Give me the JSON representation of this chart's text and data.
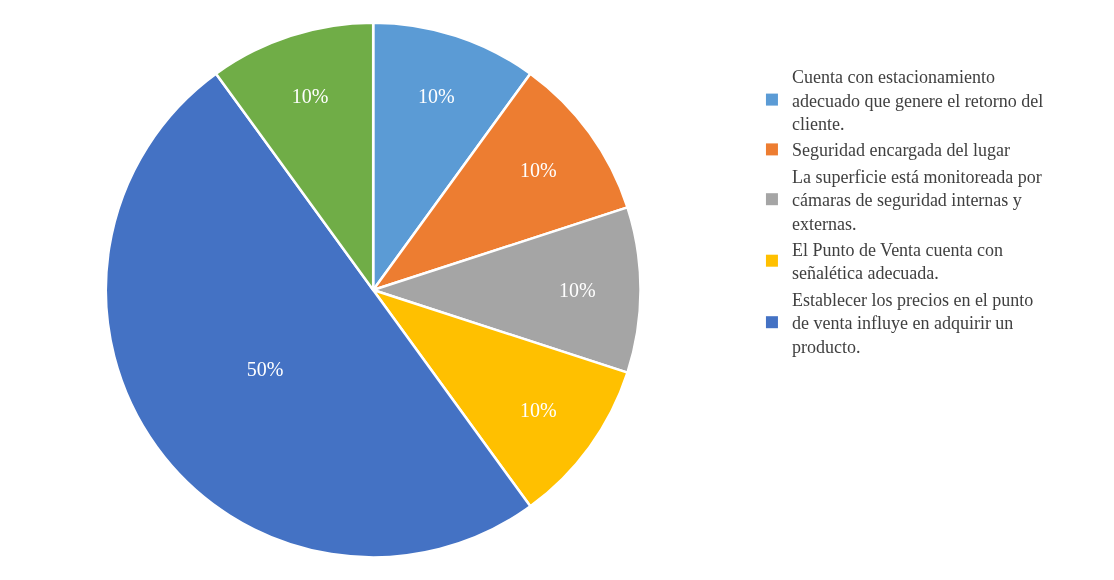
{
  "chart_data": {
    "type": "pie",
    "categories": [
      "Cuenta con estacionamiento adecuado que genere el retorno del cliente.",
      "Seguridad encargada del lugar",
      "La superficie está monitoreada por cámaras de seguridad internas y externas.",
      "El Punto de Venta cuenta con señalética adecuada.",
      "Establecer los precios en el punto de venta influye en adquirir un producto.",
      null
    ],
    "values": [
      10,
      10,
      10,
      10,
      50,
      10
    ],
    "colors": [
      "#5b9bd5",
      "#ed7d31",
      "#a5a5a5",
      "#ffc000",
      "#4472c4",
      "#70ad47"
    ],
    "value_labels": [
      "10%",
      "10%",
      "10%",
      "10%",
      "50%",
      "10%"
    ],
    "legend": "right"
  }
}
